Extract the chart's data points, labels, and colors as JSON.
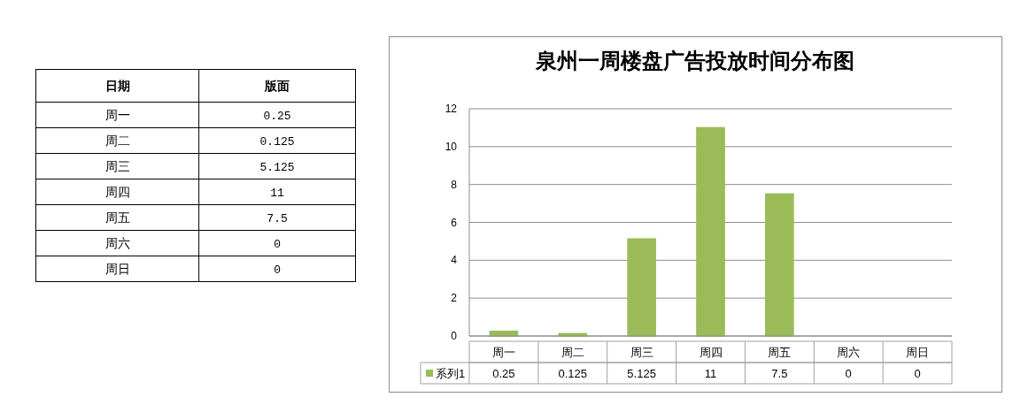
{
  "chart_data": [
    {
      "type": "other",
      "categories": [
        "周一",
        "周二",
        "周三",
        "周四",
        "周五",
        "周六",
        "周日"
      ],
      "values": [
        0.25,
        0.125,
        5.125,
        11,
        7.5,
        0,
        0
      ],
      "data_labels": true,
      "annotations": [
        "日期",
        "版面"
      ]
    },
    {
      "type": "bar",
      "title": "泉州一周楼盘广告投放时间分布图",
      "categories": [
        "周一",
        "周二",
        "周三",
        "周四",
        "周五",
        "周六",
        "周日"
      ],
      "series": [
        {
          "name": "系列1",
          "color": "#9bbb59",
          "values": [
            0.25,
            0.125,
            5.125,
            11,
            7.5,
            0,
            0
          ]
        }
      ],
      "ylim": [
        0,
        12
      ],
      "yticks": [
        0,
        2,
        4,
        6,
        8,
        10,
        12
      ],
      "grid": "y",
      "legend": "bottom",
      "data_labels": true
    }
  ]
}
